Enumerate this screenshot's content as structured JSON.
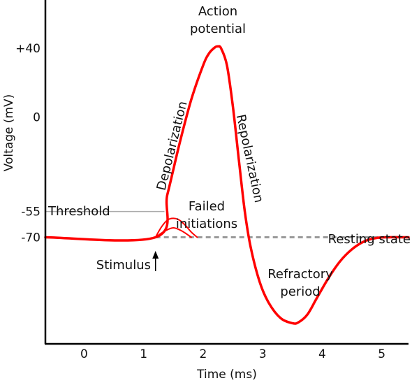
{
  "chart_data": {
    "type": "line",
    "xlabel": "Time (ms)",
    "ylabel": "Voltage (mV)",
    "xlim": [
      -0.65,
      5.45
    ],
    "ylim": [
      -132,
      68
    ],
    "x_ticks": [
      0,
      1,
      2,
      3,
      4,
      5
    ],
    "x_tick_labels": [
      "0",
      "1",
      "2",
      "3",
      "4",
      "5"
    ],
    "y_ticks": [
      40,
      0,
      -55,
      -70
    ],
    "y_tick_labels": [
      "+40",
      "0",
      "-55",
      "-70"
    ],
    "grid": false,
    "resting_potential": -70,
    "threshold_potential": -55,
    "stimulus_time": 1.2,
    "colors": {
      "trace": "#ff0000",
      "axis": "#000000",
      "threshold_line": "#aaaaaa",
      "resting_line": "#999999"
    },
    "series": [
      {
        "role": "action-potential",
        "x": [
          -0.65,
          1.2,
          1.4,
          1.6,
          1.8,
          2.0,
          2.1,
          2.2,
          2.25,
          2.3,
          2.4,
          2.5,
          2.6,
          2.7,
          2.8,
          2.95,
          3.1,
          3.3,
          3.5,
          3.6,
          3.75,
          3.9,
          4.1,
          4.3,
          4.5,
          4.7,
          4.9,
          5.1,
          5.45
        ],
        "y": [
          -70,
          -70,
          -45,
          -16,
          10,
          30,
          37,
          40.5,
          41,
          40,
          30,
          6,
          -25,
          -55,
          -76,
          -96,
          -108,
          -117,
          -120,
          -119.5,
          -115,
          -106,
          -94,
          -84,
          -77,
          -72.5,
          -70.5,
          -70,
          -70
        ]
      },
      {
        "role": "failed-initiation",
        "x": [
          1.2,
          1.3,
          1.4,
          1.5,
          1.6,
          1.7,
          1.8,
          1.9
        ],
        "y": [
          -70,
          -64,
          -60,
          -59,
          -60,
          -63,
          -67,
          -70
        ]
      },
      {
        "role": "failed-initiation",
        "x": [
          1.2,
          1.35,
          1.5,
          1.65,
          1.8
        ],
        "y": [
          -70,
          -66.5,
          -64.5,
          -66.5,
          -70
        ]
      }
    ],
    "annotations": {
      "action_potential": [
        "Action",
        "potential"
      ],
      "depolarization": "Depolarization",
      "repolarization": "Repolarization",
      "threshold": "Threshold",
      "failed_initiations": [
        "Failed",
        "initiations"
      ],
      "resting_state": "Resting state",
      "stimulus": "Stimulus",
      "refractory_period": [
        "Refractory",
        "period"
      ]
    }
  }
}
